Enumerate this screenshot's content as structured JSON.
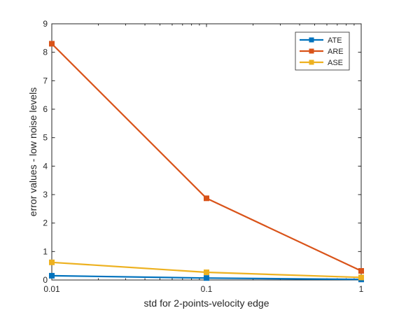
{
  "chart_data": {
    "type": "line",
    "x_scale": "log",
    "x": [
      0.01,
      0.1,
      1
    ],
    "x_tick_labels": [
      "0.01",
      "0.1",
      "1"
    ],
    "xlim": [
      0.01,
      1
    ],
    "ylim": [
      0,
      9
    ],
    "y_ticks": [
      0,
      1,
      2,
      3,
      4,
      5,
      6,
      7,
      8,
      9
    ],
    "xlabel": "std for 2-points-velocity edge",
    "ylabel": "error values - low noise levels",
    "grid": false,
    "legend_position": "top-right",
    "series": [
      {
        "name": "ATE",
        "values": [
          0.15,
          0.07,
          0.02
        ],
        "color": "#0072BD",
        "marker": "square"
      },
      {
        "name": "ARE",
        "values": [
          8.3,
          2.87,
          0.32
        ],
        "color": "#D95319",
        "marker": "square"
      },
      {
        "name": "ASE",
        "values": [
          0.62,
          0.27,
          0.09
        ],
        "color": "#EDB120",
        "marker": "square"
      }
    ]
  }
}
